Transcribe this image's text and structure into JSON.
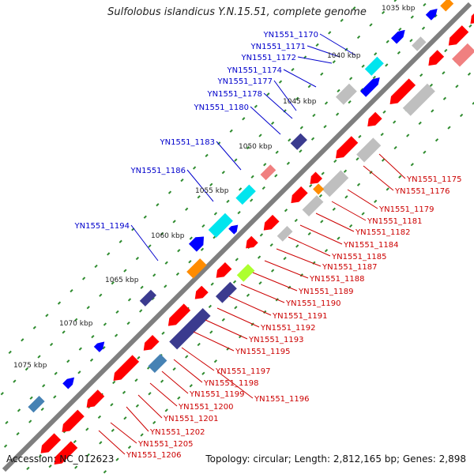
{
  "title": "Sulfolobus islandicus Y.N.15.51, complete genome",
  "footer": {
    "accession": "Accession: NC_012623",
    "topology": "Topology: circular; Length: 2,812,165 bp; Genes: 2,898"
  },
  "colors": {
    "backbone": "#7f7f7f",
    "tick": "#2e8b2e",
    "label_forward": "#0000cc",
    "label_reverse": "#cc0000",
    "gene_red": "#ff0000",
    "gene_blue": "#0000ff",
    "gene_gray": "#bfbfbf",
    "gene_cyan": "#00e5ee",
    "gene_navy": "#3b3b8f",
    "gene_orange": "#ff8c00",
    "gene_pink": "#f08080",
    "gene_lime": "#adff2f",
    "gene_steel": "#4682b4"
  },
  "kbp_labels": [
    "1035 kbp",
    "1040 kbp",
    "1045 kbp",
    "1050 kbp",
    "1055 kbp",
    "1060 kbp",
    "1065 kbp",
    "1070 kbp",
    "1075 kbp"
  ],
  "forward_labels": [
    "YN1551_1170",
    "YN1551_1171",
    "YN1551_1172",
    "YN1551_1174",
    "YN1551_1177",
    "YN1551_1178",
    "YN1551_1180",
    "YN1551_1183",
    "YN1551_1186",
    "YN1551_1194"
  ],
  "reverse_labels": [
    "YN1551_1175",
    "YN1551_1176",
    "YN1551_1179",
    "YN1551_1181",
    "YN1551_1182",
    "YN1551_1184",
    "YN1551_1185",
    "YN1551_1187",
    "YN1551_1188",
    "YN1551_1189",
    "YN1551_1190",
    "YN1551_1191",
    "YN1551_1192",
    "YN1551_1193",
    "YN1551_1195",
    "YN1551_1197",
    "YN1551_1198",
    "YN1551_1196",
    "YN1551_1199",
    "YN1551_1200",
    "YN1551_1201",
    "YN1551_1202",
    "YN1551_1205",
    "YN1551_1206"
  ]
}
